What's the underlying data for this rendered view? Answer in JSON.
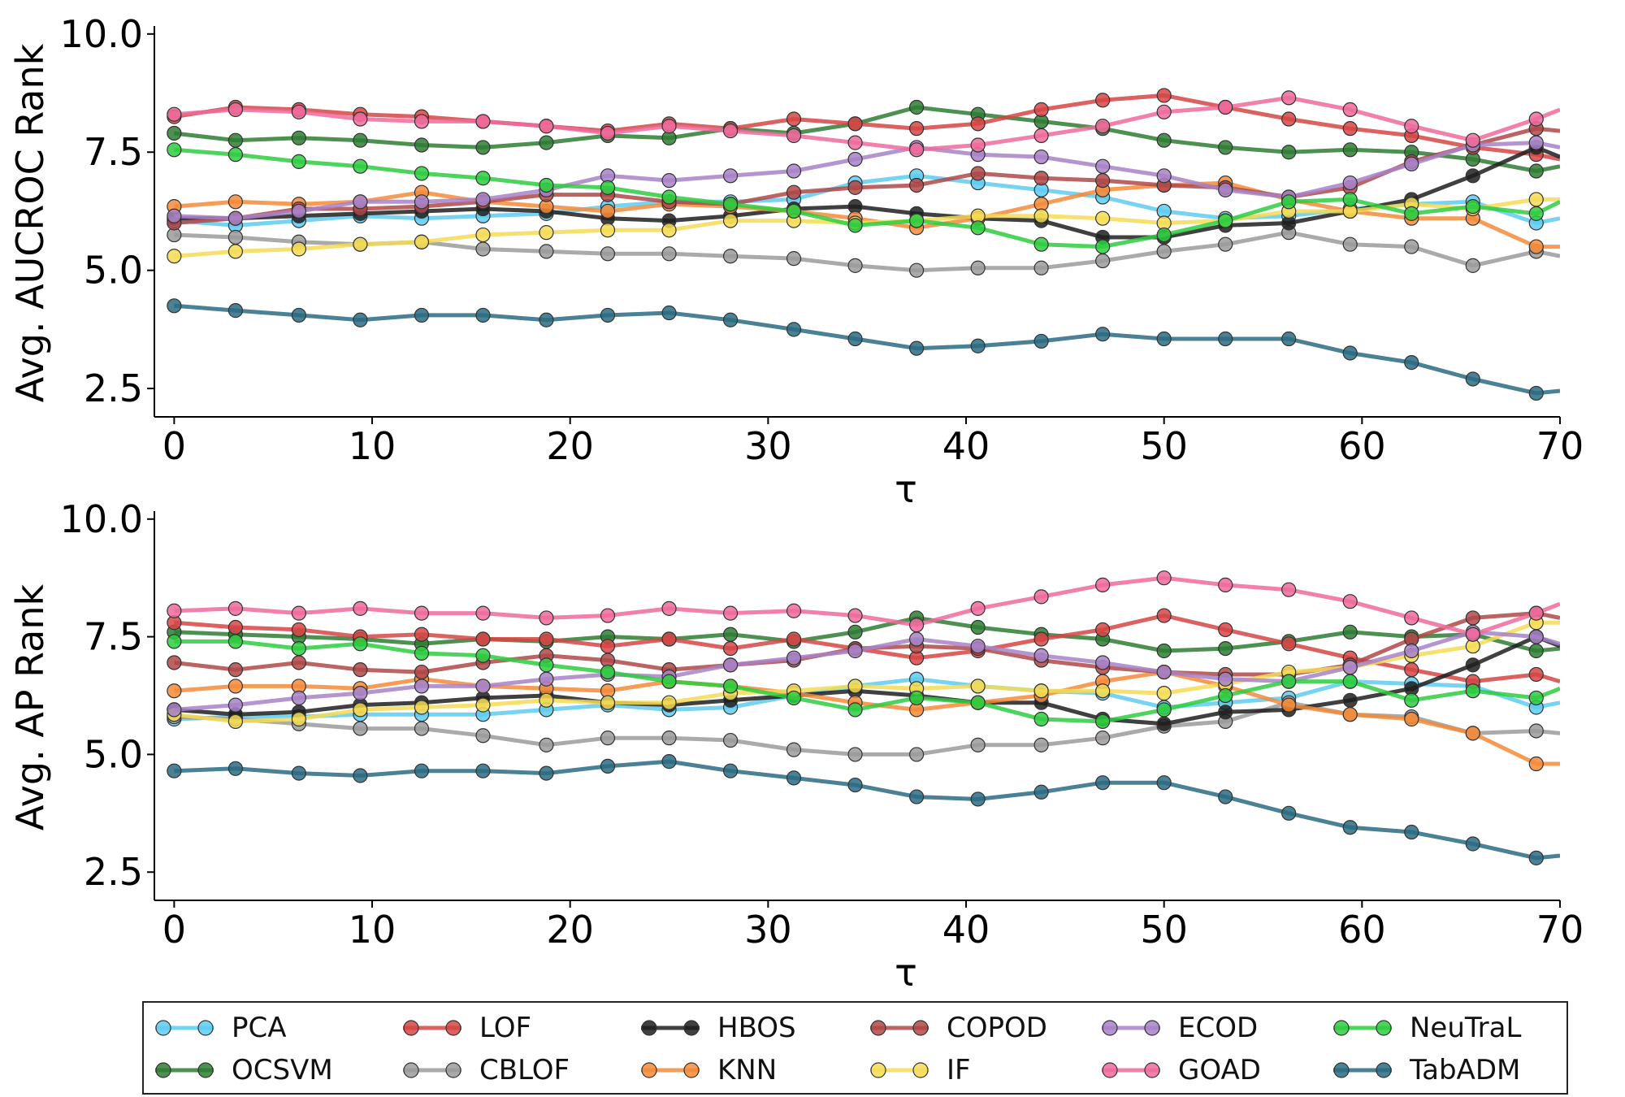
{
  "chart_data": [
    {
      "type": "line",
      "ylabel": "Avg. AUCROC Rank",
      "xlabel": "τ",
      "xlim": [
        -1,
        70
      ],
      "ylim": [
        1.9,
        10.1
      ],
      "xticks": [
        "0",
        "10",
        "20",
        "30",
        "40",
        "50",
        "60",
        "70"
      ],
      "yticks": [
        "2.5",
        "5.0",
        "7.5",
        "10.0"
      ],
      "x": [
        0,
        3.1,
        6.3,
        9.4,
        12.5,
        15.6,
        18.8,
        21.9,
        25.0,
        28.1,
        31.3,
        34.4,
        37.5,
        40.6,
        43.8,
        46.9,
        50.0,
        53.1,
        56.3,
        59.4,
        62.5,
        65.6,
        68.8,
        70
      ],
      "series": [
        {
          "name": "PCA",
          "values": [
            6.05,
            5.95,
            6.05,
            6.15,
            6.1,
            6.15,
            6.2,
            6.35,
            6.45,
            6.45,
            6.5,
            6.85,
            7.0,
            6.85,
            6.7,
            6.55,
            6.25,
            6.1,
            6.15,
            6.3,
            6.4,
            6.45,
            6.0,
            6.1
          ]
        },
        {
          "name": "OCSVM",
          "values": [
            7.9,
            7.75,
            7.8,
            7.75,
            7.65,
            7.6,
            7.7,
            7.85,
            7.8,
            8.0,
            7.9,
            8.1,
            8.45,
            8.3,
            8.15,
            8.0,
            7.75,
            7.6,
            7.5,
            7.55,
            7.5,
            7.35,
            7.1,
            7.2
          ]
        },
        {
          "name": "LOF",
          "values": [
            8.25,
            8.45,
            8.4,
            8.3,
            8.25,
            8.15,
            8.05,
            7.95,
            8.1,
            8.0,
            8.2,
            8.1,
            8.0,
            8.1,
            8.4,
            8.6,
            8.7,
            8.45,
            8.2,
            8.0,
            7.85,
            7.6,
            7.45,
            7.35
          ]
        },
        {
          "name": "CBLOF",
          "values": [
            5.75,
            5.7,
            5.6,
            5.55,
            5.6,
            5.45,
            5.4,
            5.35,
            5.35,
            5.3,
            5.25,
            5.1,
            5.0,
            5.05,
            5.05,
            5.2,
            5.4,
            5.55,
            5.8,
            5.55,
            5.5,
            5.1,
            5.4,
            5.3
          ]
        },
        {
          "name": "HBOS",
          "values": [
            6.1,
            6.1,
            6.15,
            6.2,
            6.25,
            6.3,
            6.25,
            6.1,
            6.05,
            6.15,
            6.3,
            6.35,
            6.2,
            6.1,
            6.05,
            5.7,
            5.7,
            5.95,
            6.0,
            6.25,
            6.5,
            7.0,
            7.6,
            7.4
          ]
        },
        {
          "name": "KNN",
          "values": [
            6.35,
            6.45,
            6.4,
            6.45,
            6.65,
            6.45,
            6.35,
            6.25,
            6.4,
            6.35,
            6.25,
            6.1,
            5.9,
            6.1,
            6.4,
            6.7,
            6.8,
            6.85,
            6.5,
            6.25,
            6.1,
            6.1,
            5.5,
            5.5
          ]
        },
        {
          "name": "COPOD",
          "values": [
            6.0,
            6.1,
            6.3,
            6.3,
            6.35,
            6.45,
            6.6,
            6.6,
            6.45,
            6.4,
            6.65,
            6.75,
            6.8,
            7.05,
            6.95,
            6.9,
            6.8,
            6.75,
            6.55,
            6.75,
            7.3,
            7.65,
            8.0,
            7.95
          ]
        },
        {
          "name": "IF",
          "values": [
            5.3,
            5.4,
            5.45,
            5.55,
            5.6,
            5.75,
            5.8,
            5.85,
            5.85,
            6.05,
            6.05,
            6.0,
            6.05,
            6.15,
            6.15,
            6.1,
            6.0,
            6.05,
            6.25,
            6.25,
            6.4,
            6.3,
            6.5,
            6.5
          ]
        },
        {
          "name": "ECOD",
          "values": [
            6.15,
            6.1,
            6.25,
            6.45,
            6.45,
            6.5,
            6.7,
            7.0,
            6.9,
            7.0,
            7.1,
            7.35,
            7.6,
            7.45,
            7.4,
            7.2,
            7.0,
            6.7,
            6.55,
            6.85,
            7.25,
            7.65,
            7.7,
            7.6
          ]
        },
        {
          "name": "GOAD",
          "values": [
            8.3,
            8.4,
            8.35,
            8.2,
            8.15,
            8.15,
            8.05,
            7.9,
            8.05,
            7.95,
            7.85,
            7.7,
            7.55,
            7.65,
            7.85,
            8.05,
            8.35,
            8.45,
            8.65,
            8.4,
            8.05,
            7.75,
            8.2,
            8.4
          ]
        },
        {
          "name": "NeuTraL",
          "values": [
            7.55,
            7.45,
            7.3,
            7.2,
            7.05,
            6.95,
            6.8,
            6.75,
            6.55,
            6.4,
            6.25,
            5.95,
            6.05,
            5.9,
            5.55,
            5.5,
            5.75,
            6.05,
            6.45,
            6.5,
            6.2,
            6.35,
            6.2,
            6.45
          ]
        },
        {
          "name": "TabADM",
          "values": [
            4.25,
            4.15,
            4.05,
            3.95,
            4.05,
            4.05,
            3.95,
            4.05,
            4.1,
            3.95,
            3.75,
            3.55,
            3.35,
            3.4,
            3.5,
            3.65,
            3.55,
            3.55,
            3.55,
            3.25,
            3.05,
            2.7,
            2.4,
            2.45
          ]
        }
      ]
    },
    {
      "type": "line",
      "ylabel": "Avg. AP Rank",
      "xlabel": "τ",
      "xlim": [
        -1,
        70
      ],
      "ylim": [
        1.9,
        10.1
      ],
      "xticks": [
        "0",
        "10",
        "20",
        "30",
        "40",
        "50",
        "60",
        "70"
      ],
      "yticks": [
        "2.5",
        "5.0",
        "7.5",
        "10.0"
      ],
      "x": [
        0,
        3.1,
        6.3,
        9.4,
        12.5,
        15.6,
        18.8,
        21.9,
        25.0,
        28.1,
        31.3,
        34.4,
        37.5,
        40.6,
        43.8,
        46.9,
        50.0,
        53.1,
        56.3,
        59.4,
        62.5,
        65.6,
        68.8,
        70
      ],
      "series": [
        {
          "name": "PCA",
          "values": [
            5.75,
            5.8,
            5.8,
            5.85,
            5.85,
            5.85,
            5.95,
            6.05,
            5.95,
            6.0,
            6.25,
            6.45,
            6.6,
            6.45,
            6.35,
            6.3,
            6.0,
            6.1,
            6.2,
            6.55,
            6.5,
            6.45,
            6.0,
            6.1
          ]
        },
        {
          "name": "OCSVM",
          "values": [
            7.6,
            7.55,
            7.5,
            7.45,
            7.35,
            7.45,
            7.4,
            7.5,
            7.45,
            7.55,
            7.4,
            7.6,
            7.9,
            7.7,
            7.55,
            7.45,
            7.2,
            7.25,
            7.4,
            7.6,
            7.5,
            7.55,
            7.2,
            7.25
          ]
        },
        {
          "name": "LOF",
          "values": [
            7.8,
            7.7,
            7.65,
            7.5,
            7.55,
            7.45,
            7.45,
            7.3,
            7.45,
            7.25,
            7.45,
            7.25,
            7.05,
            7.2,
            7.45,
            7.65,
            7.95,
            7.65,
            7.35,
            7.05,
            6.8,
            6.55,
            6.7,
            6.55
          ]
        },
        {
          "name": "CBLOF",
          "values": [
            5.8,
            5.75,
            5.65,
            5.55,
            5.55,
            5.4,
            5.2,
            5.35,
            5.35,
            5.3,
            5.1,
            5.0,
            5.0,
            5.2,
            5.2,
            5.35,
            5.6,
            5.7,
            6.1,
            5.85,
            5.8,
            5.45,
            5.5,
            5.45
          ]
        },
        {
          "name": "HBOS",
          "values": [
            5.95,
            5.85,
            5.9,
            6.05,
            6.1,
            6.2,
            6.25,
            6.1,
            6.05,
            6.15,
            6.25,
            6.35,
            6.25,
            6.1,
            6.1,
            5.75,
            5.65,
            5.9,
            5.95,
            6.15,
            6.4,
            6.9,
            7.5,
            7.3
          ]
        },
        {
          "name": "KNN",
          "values": [
            6.35,
            6.45,
            6.45,
            6.4,
            6.6,
            6.45,
            6.4,
            6.35,
            6.55,
            6.45,
            6.3,
            6.1,
            5.95,
            6.1,
            6.25,
            6.55,
            6.75,
            6.45,
            6.05,
            5.85,
            5.75,
            5.45,
            4.8,
            4.8
          ]
        },
        {
          "name": "COPOD",
          "values": [
            6.95,
            6.8,
            6.95,
            6.8,
            6.75,
            6.95,
            7.1,
            7.0,
            6.8,
            6.9,
            7.0,
            7.25,
            7.3,
            7.25,
            7.0,
            6.85,
            6.75,
            6.7,
            6.7,
            6.9,
            7.45,
            7.9,
            8.0,
            7.9
          ]
        },
        {
          "name": "IF",
          "values": [
            5.85,
            5.7,
            5.75,
            5.95,
            6.0,
            6.05,
            6.15,
            6.1,
            6.1,
            6.3,
            6.35,
            6.45,
            6.4,
            6.45,
            6.35,
            6.35,
            6.3,
            6.5,
            6.75,
            6.85,
            7.1,
            7.3,
            7.8,
            7.8
          ]
        },
        {
          "name": "ECOD",
          "values": [
            5.95,
            6.05,
            6.2,
            6.3,
            6.45,
            6.45,
            6.6,
            6.7,
            6.65,
            6.9,
            7.05,
            7.2,
            7.45,
            7.3,
            7.1,
            6.95,
            6.75,
            6.6,
            6.55,
            6.85,
            7.2,
            7.6,
            7.5,
            7.35
          ]
        },
        {
          "name": "GOAD",
          "values": [
            8.05,
            8.1,
            8.0,
            8.1,
            8.0,
            8.0,
            7.9,
            7.95,
            8.1,
            8.0,
            8.05,
            7.95,
            7.75,
            8.1,
            8.35,
            8.6,
            8.75,
            8.6,
            8.5,
            8.25,
            7.9,
            7.55,
            8.0,
            8.2
          ]
        },
        {
          "name": "NeuTraL",
          "values": [
            7.4,
            7.4,
            7.25,
            7.35,
            7.15,
            7.1,
            6.9,
            6.75,
            6.55,
            6.45,
            6.2,
            5.95,
            6.2,
            6.1,
            5.75,
            5.7,
            5.95,
            6.25,
            6.55,
            6.55,
            6.15,
            6.35,
            6.2,
            6.4
          ]
        },
        {
          "name": "TabADM",
          "values": [
            4.65,
            4.7,
            4.6,
            4.55,
            4.65,
            4.65,
            4.6,
            4.75,
            4.85,
            4.65,
            4.5,
            4.35,
            4.1,
            4.05,
            4.2,
            4.4,
            4.4,
            4.1,
            3.75,
            3.45,
            3.35,
            3.1,
            2.8,
            2.85
          ]
        }
      ]
    }
  ],
  "colors": {
    "PCA": "#5ecbf0",
    "OCSVM": "#2e7d32",
    "LOF": "#d64545",
    "CBLOF": "#9b9b9b",
    "HBOS": "#1f1f1f",
    "KNN": "#f58b3a",
    "COPOD": "#b04848",
    "IF": "#f5dc55",
    "ECOD": "#a882c8",
    "GOAD": "#ef6b9c",
    "NeuTraL": "#2ecc40",
    "TabADM": "#2a6b82"
  },
  "legend": {
    "items": [
      "PCA",
      "LOF",
      "HBOS",
      "COPOD",
      "ECOD",
      "NeuTraL",
      "OCSVM",
      "CBLOF",
      "KNN",
      "IF",
      "GOAD",
      "TabADM"
    ]
  }
}
